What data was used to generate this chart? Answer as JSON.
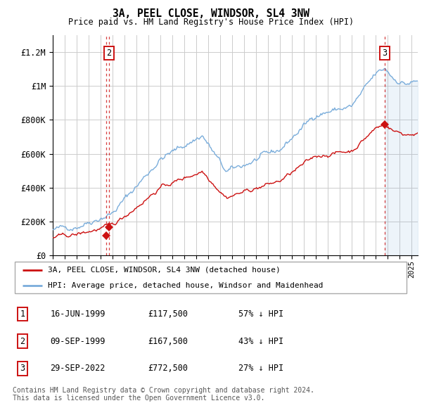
{
  "title": "3A, PEEL CLOSE, WINDSOR, SL4 3NW",
  "subtitle": "Price paid vs. HM Land Registry's House Price Index (HPI)",
  "ylim": [
    0,
    1300000
  ],
  "yticks": [
    0,
    200000,
    400000,
    600000,
    800000,
    1000000,
    1200000
  ],
  "ytick_labels": [
    "£0",
    "£200K",
    "£400K",
    "£600K",
    "£800K",
    "£1M",
    "£1.2M"
  ],
  "background_color": "#ffffff",
  "grid_color": "#cccccc",
  "hpi_color": "#7aaddb",
  "price_color": "#cc1111",
  "purchases": [
    {
      "date_x": 1999.46,
      "price": 117500,
      "label": "1"
    },
    {
      "date_x": 1999.69,
      "price": 167500,
      "label": "2"
    },
    {
      "date_x": 2022.74,
      "price": 772500,
      "label": "3"
    }
  ],
  "legend_entries": [
    {
      "label": "3A, PEEL CLOSE, WINDSOR, SL4 3NW (detached house)",
      "color": "#cc1111"
    },
    {
      "label": "HPI: Average price, detached house, Windsor and Maidenhead",
      "color": "#7aaddb"
    }
  ],
  "table_rows": [
    {
      "num": "1",
      "date": "16-JUN-1999",
      "price": "£117,500",
      "hpi": "57% ↓ HPI"
    },
    {
      "num": "2",
      "date": "09-SEP-1999",
      "price": "£167,500",
      "hpi": "43% ↓ HPI"
    },
    {
      "num": "3",
      "date": "29-SEP-2022",
      "price": "£772,500",
      "hpi": "27% ↓ HPI"
    }
  ],
  "footer": "Contains HM Land Registry data © Crown copyright and database right 2024.\nThis data is licensed under the Open Government Licence v3.0.",
  "xmin": 1995.0,
  "xmax": 2025.5
}
